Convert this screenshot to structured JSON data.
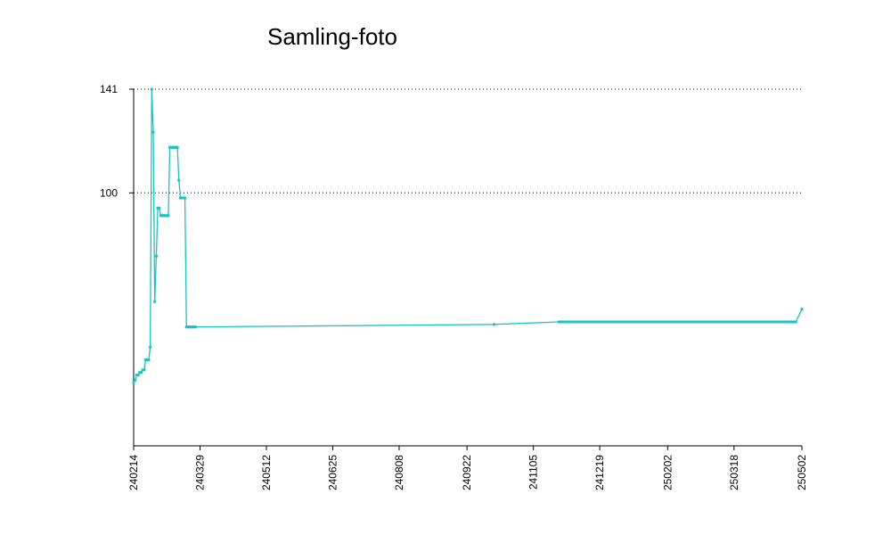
{
  "chart_data": {
    "type": "line",
    "title": "Samling-foto",
    "xlabel": "",
    "ylabel": "",
    "x_tick_labels": [
      "240214",
      "240329",
      "240512",
      "240625",
      "240808",
      "240922",
      "241105",
      "241219",
      "250202",
      "250318",
      "250502"
    ],
    "y_tick_labels": [
      "100",
      "141"
    ],
    "ylim": [
      0,
      141
    ],
    "x": [
      "2024-02-14",
      "2024-02-15",
      "2024-02-16",
      "2024-02-17",
      "2024-02-18",
      "2024-02-19",
      "2024-02-20",
      "2024-02-21",
      "2024-02-22",
      "2024-02-23",
      "2024-02-24",
      "2024-02-25",
      "2024-02-26",
      "2024-02-27",
      "2024-02-28",
      "2024-02-29",
      "2024-03-01",
      "2024-03-02",
      "2024-03-03",
      "2024-03-04",
      "2024-03-05",
      "2024-03-06",
      "2024-03-07",
      "2024-03-08",
      "2024-03-09",
      "2024-03-10",
      "2024-03-11",
      "2024-03-12",
      "2024-03-13",
      "2024-03-14",
      "2024-03-15",
      "2024-03-16",
      "2024-03-17",
      "2024-03-18",
      "2024-03-19",
      "2024-03-20",
      "2024-03-21",
      "2024-03-22",
      "2024-03-23",
      "2024-03-24",
      "2024-03-25",
      "2024-03-26",
      "2024-10-10",
      "2024-11-22",
      "2025-04-28",
      "2025-05-02"
    ],
    "y": [
      25,
      26,
      28,
      28,
      29,
      29,
      30,
      30,
      34,
      34,
      34,
      39,
      141,
      124,
      57,
      75,
      94,
      94,
      91,
      91,
      91,
      91,
      91,
      91,
      118,
      118,
      118,
      118,
      118,
      118,
      105,
      98,
      98,
      98,
      98,
      47,
      47,
      47,
      47,
      47,
      47,
      47,
      48,
      49,
      49,
      54
    ],
    "series_color": "#18c4c4",
    "grid": "dotted horizontal lines at labeled y ticks"
  }
}
